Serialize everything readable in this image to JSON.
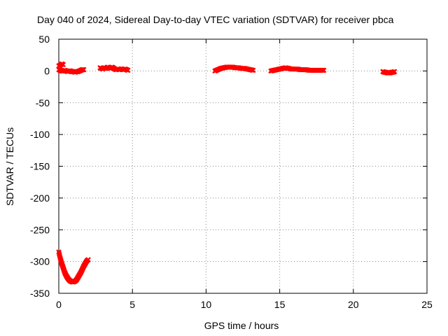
{
  "chart_data": {
    "type": "scatter",
    "title": "Day 040 of 2024, Sidereal Day-to-day VTEC variation (SDTVAR) for receiver pbca",
    "xlabel": "GPS time / hours",
    "ylabel": "SDTVAR / TECUs",
    "xlim": [
      0,
      25
    ],
    "ylim": [
      -350,
      50
    ],
    "x_ticks": [
      0,
      5,
      10,
      15,
      20,
      25
    ],
    "y_ticks": [
      50,
      0,
      -50,
      -100,
      -150,
      -200,
      -250,
      -300,
      -350
    ],
    "grid": true,
    "legend": "none",
    "series_color": "#ff0000",
    "series": [
      {
        "x": [
          0.0,
          0.1,
          0.2,
          0.3
        ],
        "y": [
          8,
          9,
          11,
          10
        ]
      },
      {
        "x": [
          0.0,
          0.1,
          0.2,
          0.3,
          0.4,
          0.5,
          0.6,
          0.7,
          0.8,
          0.9,
          1.0,
          1.1,
          1.2,
          1.3,
          1.4,
          1.5,
          1.6,
          1.7
        ],
        "y": [
          2,
          1,
          0,
          0,
          1,
          0,
          -1,
          0,
          0,
          -1,
          -1,
          -2,
          -1,
          -1,
          0,
          1,
          2,
          2
        ]
      },
      {
        "x": [
          0.0,
          0.1,
          0.2,
          0.3,
          0.4,
          0.5,
          0.6,
          0.7,
          0.8,
          0.9,
          1.0,
          1.1,
          1.2,
          1.3,
          1.4,
          1.5,
          1.6,
          1.7,
          1.8,
          1.9,
          2.0
        ],
        "y": [
          -285,
          -295,
          -303,
          -310,
          -317,
          -322,
          -326,
          -329,
          -331,
          -332,
          -332,
          -331,
          -329,
          -325,
          -321,
          -317,
          -312,
          -307,
          -303,
          -299,
          -297
        ]
      },
      {
        "x": [
          2.8,
          2.9,
          3.0,
          3.1,
          3.2,
          3.3,
          3.4,
          3.5,
          3.6,
          3.7,
          3.8,
          3.9,
          4.0,
          4.1,
          4.2,
          4.3,
          4.4,
          4.5,
          4.6,
          4.7
        ],
        "y": [
          5,
          4,
          3,
          5,
          4,
          6,
          5,
          4,
          6,
          5,
          3,
          2,
          3,
          2,
          3,
          3,
          2,
          3,
          2,
          1
        ]
      },
      {
        "x": [
          10.6,
          10.8,
          11.0,
          11.2,
          11.4,
          11.6,
          11.8,
          12.0,
          12.2,
          12.4,
          12.6,
          12.8,
          13.0,
          13.2
        ],
        "y": [
          0,
          2,
          4,
          5,
          6,
          6,
          6,
          5,
          5,
          4,
          4,
          3,
          2,
          1
        ]
      },
      {
        "x": [
          14.4,
          14.6,
          14.8,
          15.0,
          15.2,
          15.4,
          15.6,
          15.8,
          16.0,
          16.2,
          16.4,
          16.6,
          16.8,
          17.0,
          17.2,
          17.4,
          17.6,
          17.8,
          18.0
        ],
        "y": [
          0,
          1,
          2,
          3,
          4,
          5,
          4,
          3,
          3,
          3,
          2,
          2,
          2,
          1,
          1,
          1,
          1,
          1,
          1
        ]
      },
      {
        "x": [
          22.0,
          22.1,
          22.2,
          22.3,
          22.4,
          22.5,
          22.6,
          22.7,
          22.8
        ],
        "y": [
          -1,
          -2,
          -2,
          -3,
          -3,
          -3,
          -2,
          -2,
          -1
        ]
      }
    ]
  }
}
